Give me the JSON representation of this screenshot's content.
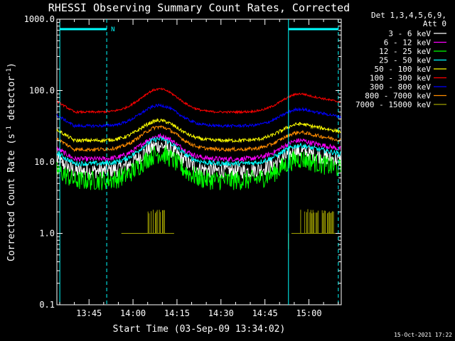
{
  "chart_data": {
    "type": "line",
    "title": "RHESSI Observing Summary Count Rates, Corrected",
    "xlabel": "Start Time (03-Sep-09 13:34:02)",
    "ylabel_main": "Corrected Count Rate (s",
    "ylabel_sup1": "-1",
    "ylabel_mid": " detector",
    "ylabel_sup2": "-1",
    "ylabel_end": ")",
    "yscale": "log",
    "ylim": [
      0.1,
      1000.0
    ],
    "xlim_minutes": [
      0,
      97
    ],
    "x_ticks": [
      "13:45",
      "14:00",
      "14:15",
      "14:30",
      "14:45",
      "15:00"
    ],
    "y_ticks": [
      "0.1",
      "1.0",
      "10.0",
      "100.0",
      "1000.0"
    ],
    "timestamp": "15-Oct-2021 17:22",
    "detector_header": "Det 1,3,4,5,6,9,",
    "attenuator": "Att 0",
    "night_marker": "N",
    "series": [
      {
        "name": "3 - 6 keV",
        "color": "#ffffff",
        "base": 7.5,
        "peak": 17,
        "end": 14,
        "noise": 0.22
      },
      {
        "name": "6 - 12 keV",
        "color": "#ff00ff",
        "base": 11,
        "peak": 23,
        "end": 20,
        "noise": 0.07
      },
      {
        "name": "12 - 25 keV",
        "color": "#00ff00",
        "base": 5.5,
        "peak": 13,
        "end": 11,
        "noise": 0.28
      },
      {
        "name": "25 - 50 keV",
        "color": "#00ffff",
        "base": 9.5,
        "peak": 21,
        "end": 17,
        "noise": 0.07
      },
      {
        "name": "50 - 100 keV",
        "color": "#ffff00",
        "base": 20,
        "peak": 38,
        "end": 34,
        "noise": 0.05
      },
      {
        "name": "100 - 300 keV",
        "color": "#ff0000",
        "base": 50,
        "peak": 105,
        "end": 90,
        "noise": 0.03
      },
      {
        "name": "300 - 800 keV",
        "color": "#0000ff",
        "base": 32,
        "peak": 62,
        "end": 55,
        "noise": 0.04
      },
      {
        "name": "800 - 7000 keV",
        "color": "#ff8c00",
        "base": 15,
        "peak": 31,
        "end": 26,
        "noise": 0.05
      },
      {
        "name": "7000 - 15000 keV",
        "color": "#a0a000",
        "base": 1.0,
        "peak": 1.0,
        "end": 1.0,
        "noise": 0
      }
    ],
    "peaks_minutes": [
      35,
      83
    ],
    "saa_intervals_minutes": [
      [
        1,
        17
      ],
      [
        79,
        96
      ]
    ],
    "night_interval_minutes": [
      1,
      17
    ]
  }
}
